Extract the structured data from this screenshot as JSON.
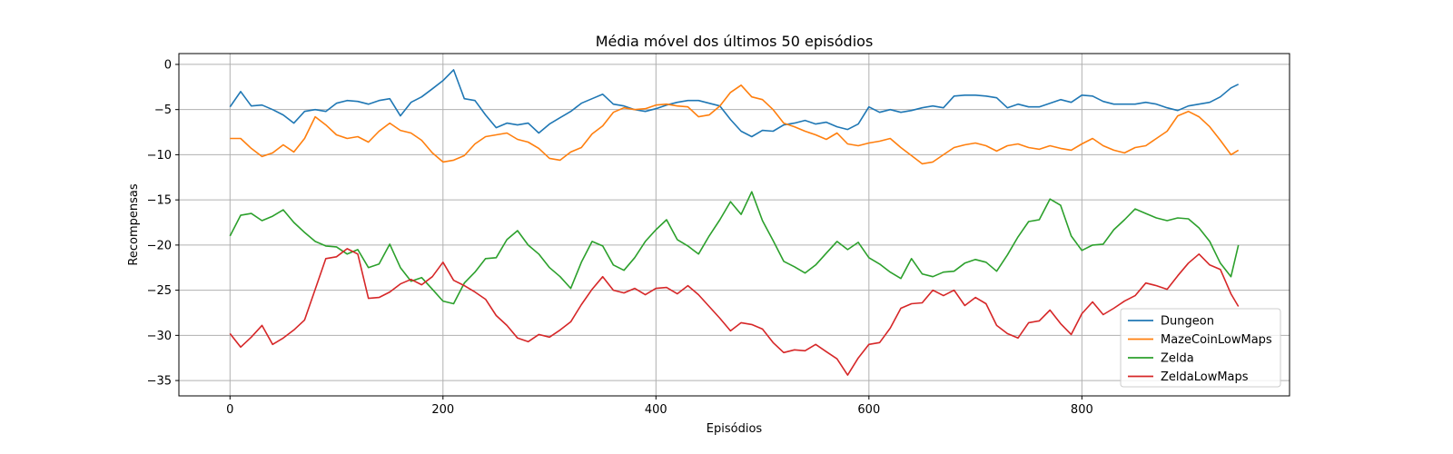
{
  "chart_data": {
    "type": "line",
    "title": "Média móvel dos últimos 50 episódios",
    "xlabel": "Episódios",
    "ylabel": "Recompensas",
    "xlim": [
      -48,
      995
    ],
    "ylim": [
      -36.7,
      1.2
    ],
    "xticks": [
      0,
      200,
      400,
      600,
      800
    ],
    "yticks": [
      0,
      -5,
      -10,
      -15,
      -20,
      -25,
      -30,
      -35
    ],
    "grid": true,
    "legend_position": "lower-right",
    "x": [
      0,
      10,
      20,
      30,
      40,
      50,
      60,
      70,
      80,
      90,
      100,
      110,
      120,
      130,
      140,
      150,
      160,
      170,
      180,
      190,
      200,
      210,
      220,
      230,
      240,
      250,
      260,
      270,
      280,
      290,
      300,
      310,
      320,
      330,
      340,
      350,
      360,
      370,
      380,
      390,
      400,
      410,
      420,
      430,
      440,
      450,
      460,
      470,
      480,
      490,
      500,
      510,
      520,
      530,
      540,
      550,
      560,
      570,
      580,
      590,
      600,
      610,
      620,
      630,
      640,
      650,
      660,
      670,
      680,
      690,
      700,
      710,
      720,
      730,
      740,
      750,
      760,
      770,
      780,
      790,
      800,
      810,
      820,
      830,
      840,
      850,
      860,
      870,
      880,
      890,
      900,
      910,
      920,
      930,
      940,
      947
    ],
    "series": [
      {
        "name": "Dungeon",
        "color": "#1f77b4",
        "values": [
          -4.7,
          -3.0,
          -4.6,
          -4.5,
          -5.0,
          -5.6,
          -6.5,
          -5.2,
          -5.0,
          -5.2,
          -4.3,
          -4.0,
          -4.1,
          -4.4,
          -4.0,
          -3.8,
          -5.7,
          -4.2,
          -3.6,
          -2.7,
          -1.8,
          -0.6,
          -3.8,
          -4.0,
          -5.6,
          -7.0,
          -6.5,
          -6.7,
          -6.5,
          -7.6,
          -6.6,
          -5.9,
          -5.2,
          -4.3,
          -3.8,
          -3.3,
          -4.4,
          -4.6,
          -5.0,
          -5.2,
          -4.9,
          -4.5,
          -4.2,
          -4.0,
          -4.0,
          -4.3,
          -4.6,
          -6.1,
          -7.4,
          -8.0,
          -7.3,
          -7.4,
          -6.7,
          -6.5,
          -6.2,
          -6.6,
          -6.4,
          -6.9,
          -7.2,
          -6.6,
          -4.7,
          -5.3,
          -5.0,
          -5.3,
          -5.1,
          -4.8,
          -4.6,
          -4.8,
          -3.5,
          -3.4,
          -3.4,
          -3.5,
          -3.7,
          -4.8,
          -4.4,
          -4.7,
          -4.7,
          -4.3,
          -3.9,
          -4.2,
          -3.4,
          -3.5,
          -4.1,
          -4.4,
          -4.4,
          -4.4,
          -4.2,
          -4.4,
          -4.8,
          -5.1,
          -4.6,
          -4.4,
          -4.2,
          -3.6,
          -2.6,
          -2.2
        ]
      },
      {
        "name": "MazeCoinLowMaps",
        "color": "#ff7f0e",
        "values": [
          -8.2,
          -8.2,
          -9.3,
          -10.2,
          -9.8,
          -8.9,
          -9.7,
          -8.2,
          -5.8,
          -6.7,
          -7.8,
          -8.2,
          -8.0,
          -8.6,
          -7.4,
          -6.5,
          -7.3,
          -7.6,
          -8.4,
          -9.8,
          -10.8,
          -10.6,
          -10.1,
          -8.8,
          -8.0,
          -7.8,
          -7.6,
          -8.3,
          -8.6,
          -9.3,
          -10.4,
          -10.6,
          -9.7,
          -9.2,
          -7.7,
          -6.8,
          -5.3,
          -4.8,
          -5.0,
          -4.9,
          -4.5,
          -4.4,
          -4.6,
          -4.7,
          -5.8,
          -5.6,
          -4.6,
          -3.1,
          -2.3,
          -3.6,
          -3.9,
          -5.0,
          -6.5,
          -6.9,
          -7.4,
          -7.8,
          -8.3,
          -7.6,
          -8.8,
          -9.0,
          -8.7,
          -8.5,
          -8.2,
          -9.2,
          -10.1,
          -11.0,
          -10.8,
          -10.0,
          -9.2,
          -8.9,
          -8.7,
          -9.0,
          -9.6,
          -9.0,
          -8.8,
          -9.2,
          -9.4,
          -9.0,
          -9.3,
          -9.5,
          -8.8,
          -8.2,
          -9.0,
          -9.5,
          -9.8,
          -9.2,
          -9.0,
          -8.2,
          -7.4,
          -5.7,
          -5.2,
          -5.8,
          -6.9,
          -8.4,
          -10.0,
          -9.5
        ]
      },
      {
        "name": "Zelda",
        "color": "#2ca02c",
        "values": [
          -19.0,
          -16.7,
          -16.5,
          -17.3,
          -16.8,
          -16.1,
          -17.5,
          -18.6,
          -19.6,
          -20.1,
          -20.2,
          -21.0,
          -20.5,
          -22.5,
          -22.1,
          -19.9,
          -22.5,
          -24.0,
          -23.6,
          -24.9,
          -26.2,
          -26.5,
          -24.2,
          -23.0,
          -21.5,
          -21.4,
          -19.4,
          -18.4,
          -20.0,
          -21.0,
          -22.5,
          -23.5,
          -24.8,
          -21.9,
          -19.6,
          -20.1,
          -22.2,
          -22.8,
          -21.4,
          -19.6,
          -18.3,
          -17.2,
          -19.4,
          -20.1,
          -21.0,
          -19.0,
          -17.2,
          -15.2,
          -16.6,
          -14.1,
          -17.3,
          -19.5,
          -21.8,
          -22.4,
          -23.1,
          -22.2,
          -20.9,
          -19.6,
          -20.5,
          -19.7,
          -21.4,
          -22.1,
          -23.0,
          -23.7,
          -21.5,
          -23.2,
          -23.5,
          -23.0,
          -22.9,
          -22.0,
          -21.6,
          -21.9,
          -22.9,
          -21.1,
          -19.1,
          -17.4,
          -17.2,
          -14.9,
          -15.6,
          -19.0,
          -20.6,
          -20.0,
          -19.9,
          -18.3,
          -17.2,
          -16.0,
          -16.5,
          -17.0,
          -17.3,
          -17.0,
          -17.1,
          -18.1,
          -19.6,
          -22.0,
          -23.5,
          -20.0
        ]
      },
      {
        "name": "ZeldaLowMaps",
        "color": "#d62728",
        "values": [
          -29.8,
          -31.3,
          -30.2,
          -28.9,
          -31.0,
          -30.3,
          -29.4,
          -28.3,
          -24.9,
          -21.5,
          -21.3,
          -20.4,
          -21.0,
          -25.9,
          -25.8,
          -25.2,
          -24.3,
          -23.8,
          -24.4,
          -23.5,
          -21.9,
          -23.9,
          -24.5,
          -25.2,
          -26.0,
          -27.8,
          -28.9,
          -30.3,
          -30.7,
          -29.9,
          -30.2,
          -29.4,
          -28.5,
          -26.6,
          -24.9,
          -23.5,
          -25.0,
          -25.3,
          -24.8,
          -25.5,
          -24.8,
          -24.7,
          -25.4,
          -24.5,
          -25.5,
          -26.8,
          -28.1,
          -29.5,
          -28.6,
          -28.8,
          -29.3,
          -30.8,
          -31.9,
          -31.6,
          -31.7,
          -31.0,
          -31.8,
          -32.6,
          -34.4,
          -32.5,
          -31.0,
          -30.8,
          -29.2,
          -27.0,
          -26.5,
          -26.4,
          -25.0,
          -25.6,
          -25.0,
          -26.7,
          -25.8,
          -26.5,
          -28.9,
          -29.8,
          -30.3,
          -28.6,
          -28.4,
          -27.2,
          -28.7,
          -29.9,
          -27.6,
          -26.3,
          -27.7,
          -27.0,
          -26.2,
          -25.6,
          -24.2,
          -24.5,
          -24.9,
          -23.4,
          -22.0,
          -21.0,
          -22.2,
          -22.7,
          -25.4,
          -26.8
        ]
      }
    ]
  }
}
